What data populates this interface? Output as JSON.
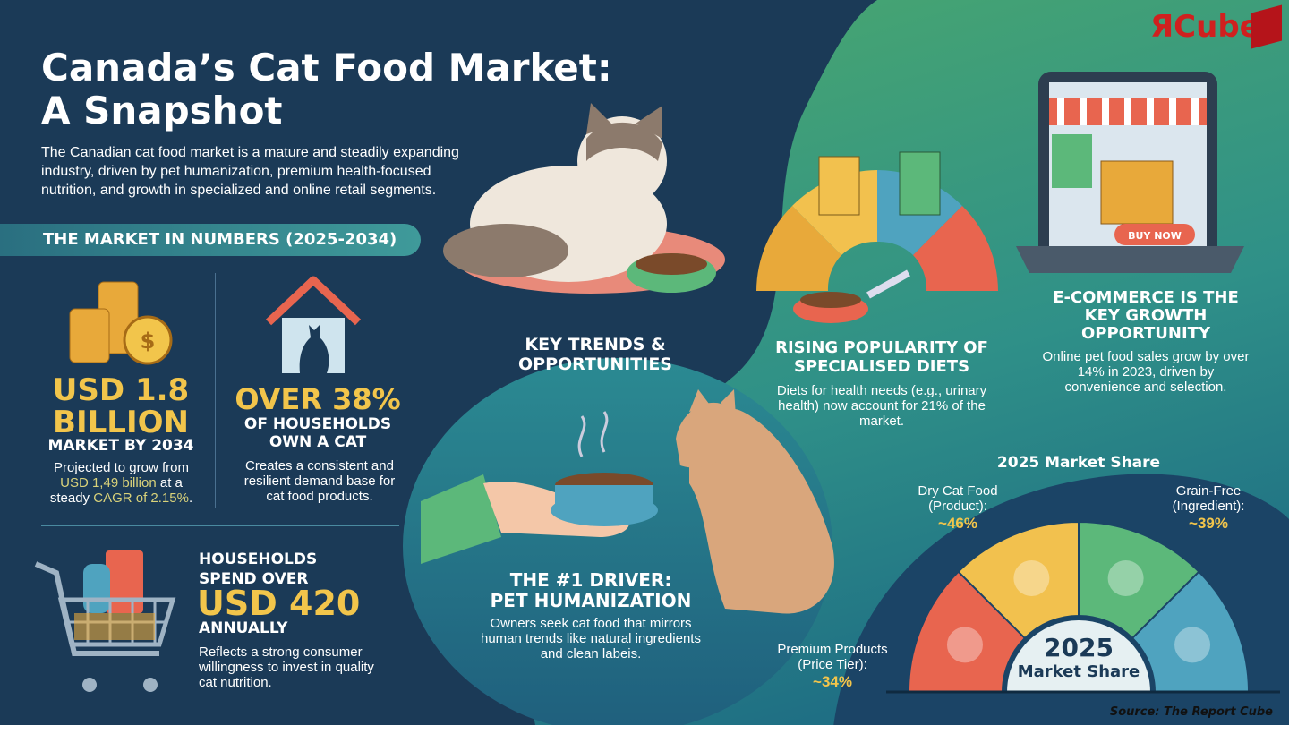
{
  "header": {
    "title_line1": "Canada’s Cat Food Market:",
    "title_line2": "A Snapshot",
    "intro": "The Canadian cat food market is a mature and steadily expanding industry, driven by pet humanization, premium health-focused nutrition, and growth in specialized and online retail segments."
  },
  "logo": {
    "text": "ЯCube",
    "color": "#d0201f"
  },
  "numbers": {
    "section_title": "THE MARKET IN NUMBERS (2025-2034)",
    "market": {
      "value_line1": "USD 1.8",
      "value_line2": "BILLION",
      "label": "MARKET BY 2034",
      "desc_pre": "Projected to grow from ",
      "desc_hl1": "USD 1,49 billion",
      "desc_mid": " at a steady ",
      "desc_hl2": "CAGR of 2.15%",
      "desc_post": "."
    },
    "households": {
      "value": "OVER 38%",
      "label_line1": "OF HOUSEHOLDS",
      "label_line2": "OWN A CAT",
      "desc": "Creates a consistent and resilient demand base for cat food products."
    },
    "spend": {
      "label_line1": "HOUSEHOLDS",
      "label_line2": "SPEND OVER",
      "value": "USD 420",
      "label_line3": "ANNUALLY",
      "desc": "Reflects a strong consumer willingness to invest in quality cat nutrition."
    }
  },
  "trends": {
    "title_line1": "KEY TRENDS &",
    "title_line2": "OPPORTUNITIES",
    "diets": {
      "title_line1": "RISING POPULARITY OF",
      "title_line2": "SPECIALISED DIETS",
      "desc": "Diets for health needs (e.g., urinary health) now account for 21% of the market."
    },
    "ecommerce": {
      "title_line1": "E-COMMERCE IS THE",
      "title_line2": "KEY GROWTH",
      "title_line3": "OPPORTUNITY",
      "desc": "Online pet food sales grow by over 14% in 2023, driven by convenience and selection.",
      "button": "BUY NOW"
    },
    "driver": {
      "title_line1": "THE #1 DRIVER:",
      "title_line2": "PET HUMANIZATION",
      "desc": "Owners seek cat food that mirrors human trends like natural ingredients and clean labeis."
    }
  },
  "market_share": {
    "title": "2025 Market Share",
    "center_year": "2025",
    "center_label": "Market Share",
    "segments": [
      {
        "label_line1": "Premium Products",
        "label_line2": "(Price Tier):",
        "value": "~34%",
        "color": "#e8654f",
        "icon": "award-ribbon-icon"
      },
      {
        "label_line1": "Dry Cat Food",
        "label_line2": "(Product):",
        "value": "~46%",
        "color": "#f2c14e",
        "icon": "food-bowl-icon"
      },
      {
        "label_line1": "Grain-Free",
        "label_line2": "(Ingredient):",
        "value": "~39%",
        "color": "#5cb87a",
        "icon": "no-grain-icon"
      },
      {
        "color": "#4fa3bf",
        "icon": "premium-bag-icon"
      }
    ]
  },
  "source": "Source: The Report Cube",
  "colors": {
    "navy": "#1b3a57",
    "gold": "#f2c54b",
    "teal": "#2f8a8f",
    "green": "#4fae7a"
  }
}
